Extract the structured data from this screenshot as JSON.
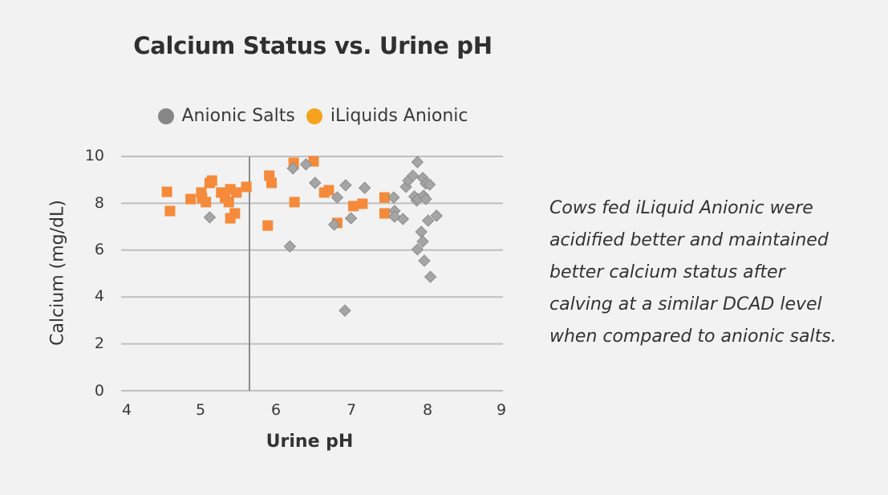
{
  "chart_data": {
    "type": "scatter",
    "title": "Calcium Status vs. Urine pH",
    "xlabel": "Urine pH",
    "ylabel": "Calcium (mg/dL)",
    "xlim": [
      4,
      9
    ],
    "ylim": [
      0,
      10
    ],
    "x_ticks": [
      "4",
      "5",
      "6",
      "7",
      "8",
      "9"
    ],
    "y_ticks": [
      "0",
      "2",
      "4",
      "6",
      "8",
      "10"
    ],
    "grid": "horizontal",
    "vertical_axis_crossing_at_x": 5.68,
    "legend_position": "top",
    "series": [
      {
        "name": "Anionic Salts",
        "marker": "diamond",
        "color": "#a5a5a5",
        "legend_color": "#878787",
        "points": [
          [
            5.16,
            7.4
          ],
          [
            6.21,
            6.16
          ],
          [
            6.25,
            9.49
          ],
          [
            6.42,
            9.66
          ],
          [
            6.54,
            8.87
          ],
          [
            6.83,
            8.25
          ],
          [
            6.79,
            7.09
          ],
          [
            6.94,
            8.77
          ],
          [
            7.01,
            7.36
          ],
          [
            6.93,
            3.42
          ],
          [
            7.19,
            8.66
          ],
          [
            7.57,
            8.25
          ],
          [
            7.58,
            7.67
          ],
          [
            7.58,
            7.43
          ],
          [
            7.69,
            7.33
          ],
          [
            7.73,
            8.7
          ],
          [
            7.76,
            8.97
          ],
          [
            7.82,
            9.18
          ],
          [
            7.88,
            9.76
          ],
          [
            7.84,
            8.29
          ],
          [
            7.87,
            8.12
          ],
          [
            7.89,
            8.18
          ],
          [
            7.95,
            9.08
          ],
          [
            7.96,
            8.32
          ],
          [
            7.99,
            8.84
          ],
          [
            7.99,
            8.18
          ],
          [
            8.04,
            8.8
          ],
          [
            8.02,
            7.26
          ],
          [
            8.13,
            7.47
          ],
          [
            7.93,
            6.78
          ],
          [
            7.95,
            6.37
          ],
          [
            7.88,
            6.03
          ],
          [
            7.97,
            5.55
          ],
          [
            8.05,
            4.86
          ]
        ]
      },
      {
        "name": "iLiquids Anionic",
        "marker": "square",
        "color": "#f58a3a",
        "legend_color": "#f6a21f",
        "points": [
          [
            4.6,
            8.49
          ],
          [
            4.64,
            7.67
          ],
          [
            4.91,
            8.18
          ],
          [
            5.05,
            8.46
          ],
          [
            5.06,
            8.22
          ],
          [
            5.11,
            8.05
          ],
          [
            5.16,
            8.87
          ],
          [
            5.19,
            8.97
          ],
          [
            5.31,
            8.46
          ],
          [
            5.36,
            8.25
          ],
          [
            5.41,
            8.05
          ],
          [
            5.43,
            8.6
          ],
          [
            5.51,
            8.46
          ],
          [
            5.43,
            7.36
          ],
          [
            5.49,
            7.57
          ],
          [
            5.64,
            8.7
          ],
          [
            5.92,
            7.05
          ],
          [
            5.94,
            9.18
          ],
          [
            5.97,
            8.87
          ],
          [
            6.26,
            9.73
          ],
          [
            6.27,
            8.05
          ],
          [
            6.52,
            9.79
          ],
          [
            6.66,
            8.46
          ],
          [
            6.72,
            8.56
          ],
          [
            6.83,
            7.16
          ],
          [
            7.04,
            7.88
          ],
          [
            7.16,
            7.98
          ],
          [
            7.45,
            8.25
          ],
          [
            7.45,
            7.57
          ]
        ]
      }
    ]
  },
  "chart": {
    "title": "Calcium Status vs. Urine pH",
    "xlabel": "Urine pH",
    "ylabel": "Calcium (mg/dL)",
    "legend": [
      {
        "label": "Anionic Salts",
        "color": "#878787"
      },
      {
        "label": "iLiquids Anionic",
        "color": "#f6a21f"
      }
    ],
    "y_ticks": [
      "10",
      "8",
      "6",
      "4",
      "2",
      "0"
    ],
    "x_ticks": [
      "4",
      "5",
      "6",
      "7",
      "8",
      "9"
    ]
  },
  "caption": {
    "lines": [
      "Cows fed iLiquid Anionic were",
      "acidified better and maintained",
      "better calcium status after",
      "calving at a similar DCAD level",
      "when compared to anionic salts."
    ]
  }
}
